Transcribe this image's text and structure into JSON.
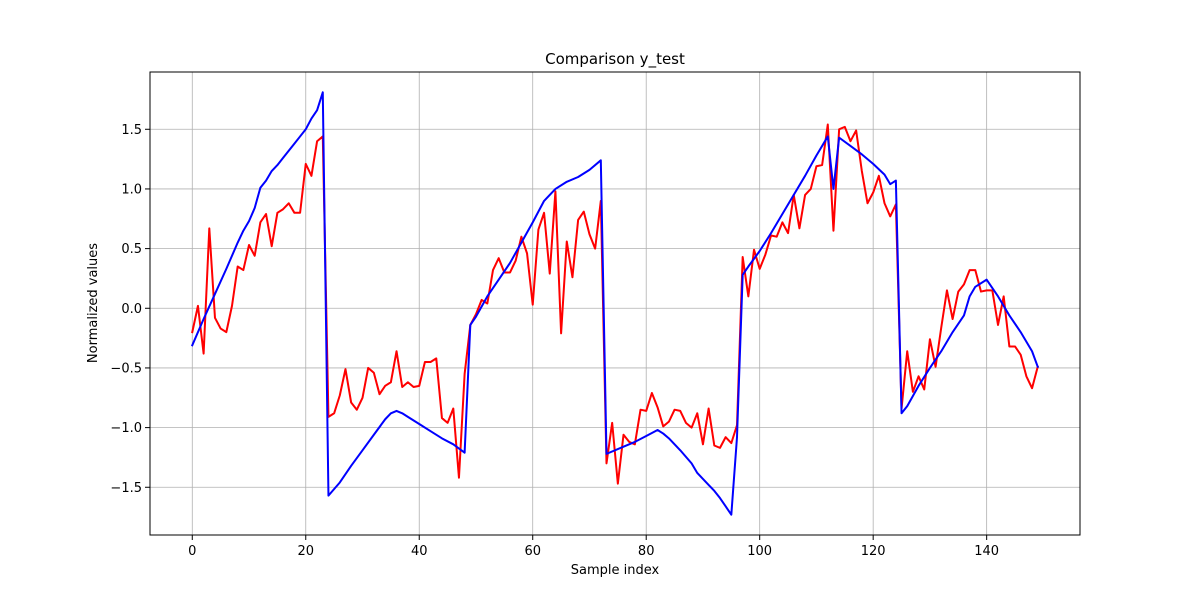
{
  "chart_data": {
    "type": "line",
    "title": "Comparison y_test",
    "xlabel": "Sample index",
    "ylabel": "Normalized values",
    "xlim": [
      -7.45,
      156.45
    ],
    "ylim": [
      -1.9,
      1.98
    ],
    "xticks": [
      0,
      20,
      40,
      60,
      80,
      100,
      120,
      140
    ],
    "yticks": [
      -1.5,
      -1.0,
      -0.5,
      0.0,
      0.5,
      1.0,
      1.5
    ],
    "ytick_labels": [
      "−1.5",
      "−1.0",
      "−0.5",
      "0.0",
      "0.5",
      "1.0",
      "1.5"
    ],
    "grid": true,
    "series": [
      {
        "color": "#ff0000",
        "x": [
          0,
          1,
          2,
          3,
          4,
          5,
          6,
          7,
          8,
          9,
          10,
          11,
          12,
          13,
          14,
          15,
          16,
          17,
          18,
          19,
          20,
          21,
          22,
          23,
          24,
          25,
          26,
          27,
          28,
          29,
          30,
          31,
          32,
          33,
          34,
          35,
          36,
          37,
          38,
          39,
          40,
          41,
          42,
          43,
          44,
          45,
          46,
          47,
          48,
          49,
          50,
          51,
          52,
          53,
          54,
          55,
          56,
          57,
          58,
          59,
          60,
          61,
          62,
          63,
          64,
          65,
          66,
          67,
          68,
          69,
          70,
          71,
          72,
          73,
          74,
          75,
          76,
          77,
          78,
          79,
          80,
          81,
          82,
          83,
          84,
          85,
          86,
          87,
          88,
          89,
          90,
          91,
          92,
          93,
          94,
          95,
          96,
          97,
          98,
          99,
          100,
          101,
          102,
          103,
          104,
          105,
          106,
          107,
          108,
          109,
          110,
          111,
          112,
          113,
          114,
          115,
          116,
          117,
          118,
          119,
          120,
          121,
          122,
          123,
          124,
          125,
          126,
          127,
          128,
          129,
          130,
          131,
          132,
          133,
          134,
          135,
          136,
          137,
          138,
          139,
          140,
          141,
          142,
          143,
          144,
          145,
          146,
          147,
          148,
          149
        ],
        "y": [
          -0.2,
          0.02,
          -0.38,
          0.67,
          -0.08,
          -0.17,
          -0.2,
          0.02,
          0.35,
          0.32,
          0.53,
          0.44,
          0.72,
          0.79,
          0.52,
          0.8,
          0.83,
          0.88,
          0.8,
          0.8,
          1.21,
          1.11,
          1.4,
          1.44,
          -0.91,
          -0.88,
          -0.73,
          -0.51,
          -0.79,
          -0.85,
          -0.75,
          -0.5,
          -0.54,
          -0.72,
          -0.65,
          -0.62,
          -0.36,
          -0.66,
          -0.62,
          -0.66,
          -0.65,
          -0.45,
          -0.45,
          -0.42,
          -0.92,
          -0.96,
          -0.84,
          -1.42,
          -0.55,
          -0.14,
          -0.05,
          0.07,
          0.04,
          0.32,
          0.42,
          0.3,
          0.3,
          0.4,
          0.6,
          0.46,
          0.03,
          0.66,
          0.8,
          0.29,
          0.98,
          -0.21,
          0.56,
          0.26,
          0.74,
          0.81,
          0.62,
          0.5,
          0.9,
          -1.3,
          -0.96,
          -1.47,
          -1.06,
          -1.12,
          -1.14,
          -0.85,
          -0.86,
          -0.71,
          -0.83,
          -0.99,
          -0.95,
          -0.85,
          -0.86,
          -0.96,
          -1.0,
          -0.88,
          -1.14,
          -0.84,
          -1.15,
          -1.17,
          -1.08,
          -1.13,
          -0.98,
          0.43,
          0.1,
          0.49,
          0.33,
          0.45,
          0.61,
          0.6,
          0.72,
          0.63,
          0.95,
          0.67,
          0.95,
          1.0,
          1.19,
          1.2,
          1.54,
          0.65,
          1.5,
          1.52,
          1.4,
          1.49,
          1.15,
          0.88,
          0.97,
          1.11,
          0.88,
          0.77,
          0.87,
          -0.84,
          -0.36,
          -0.7,
          -0.57,
          -0.68,
          -0.26,
          -0.49,
          -0.16,
          0.15,
          -0.09,
          0.14,
          0.2,
          0.32,
          0.32,
          0.14,
          0.15,
          0.15,
          -0.14,
          0.1,
          -0.32,
          -0.32,
          -0.39,
          -0.57,
          -0.67,
          -0.49
        ]
      },
      {
        "color": "#0000ff",
        "x": [
          0,
          2,
          4,
          6,
          8,
          9,
          10,
          11,
          12,
          13,
          14,
          15,
          16,
          17,
          18,
          19,
          20,
          21,
          22,
          23,
          24,
          26,
          28,
          30,
          32,
          34,
          35,
          36,
          37,
          38,
          40,
          42,
          44,
          46,
          48,
          49,
          50,
          52,
          54,
          56,
          58,
          60,
          62,
          64,
          66,
          68,
          70,
          72,
          73,
          76,
          78,
          80,
          82,
          83,
          84,
          86,
          88,
          89,
          90,
          91,
          92,
          93,
          94,
          95,
          96,
          97,
          98,
          100,
          102,
          104,
          106,
          108,
          110,
          112,
          113,
          114,
          116,
          118,
          120,
          122,
          123,
          124,
          125,
          126,
          128,
          130,
          132,
          134,
          135,
          136,
          137,
          138,
          140,
          142,
          144,
          146,
          148,
          149
        ],
        "y": [
          -0.31,
          -0.09,
          0.12,
          0.33,
          0.55,
          0.65,
          0.73,
          0.84,
          1.01,
          1.07,
          1.15,
          1.2,
          1.26,
          1.32,
          1.38,
          1.44,
          1.5,
          1.59,
          1.66,
          1.81,
          -1.57,
          -1.46,
          -1.32,
          -1.19,
          -1.06,
          -0.93,
          -0.88,
          -0.86,
          -0.88,
          -0.91,
          -0.97,
          -1.03,
          -1.09,
          -1.14,
          -1.21,
          -0.14,
          -0.07,
          0.1,
          0.24,
          0.38,
          0.55,
          0.72,
          0.9,
          1.0,
          1.06,
          1.1,
          1.16,
          1.24,
          -1.22,
          -1.16,
          -1.12,
          -1.07,
          -1.02,
          -1.05,
          -1.09,
          -1.19,
          -1.3,
          -1.38,
          -1.43,
          -1.48,
          -1.53,
          -1.59,
          -1.66,
          -1.73,
          -1.08,
          0.28,
          0.35,
          0.48,
          0.63,
          0.79,
          0.95,
          1.11,
          1.28,
          1.44,
          1.0,
          1.43,
          1.36,
          1.29,
          1.21,
          1.12,
          1.04,
          1.07,
          -0.88,
          -0.82,
          -0.65,
          -0.5,
          -0.36,
          -0.2,
          -0.13,
          -0.06,
          0.1,
          0.18,
          0.24,
          0.1,
          -0.06,
          -0.2,
          -0.36,
          -0.49
        ]
      }
    ]
  }
}
